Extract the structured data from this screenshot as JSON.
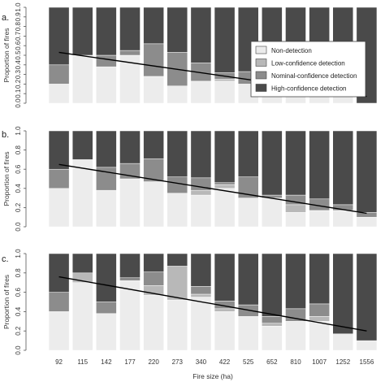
{
  "colors": {
    "non_detection": "#ececec",
    "low_confidence": "#b8b8b8",
    "nominal_confidence": "#8c8c8c",
    "high_confidence": "#4a4a4a",
    "trend_line": "#000000"
  },
  "chart_data": [
    {
      "type": "bar",
      "stacked": true,
      "panel_label": "a.",
      "ylabel": "Proportion of fires",
      "xlabel": "",
      "ylim": [
        0,
        1
      ],
      "yticks": [
        0.0,
        0.1,
        0.2,
        0.3,
        0.4,
        0.5,
        0.6,
        0.7,
        0.8,
        0.9,
        1.0
      ],
      "categories": [
        "92",
        "115",
        "142",
        "177",
        "220",
        "273",
        "340",
        "422",
        "525",
        "652",
        "810",
        "1007",
        "1252",
        "1556"
      ],
      "series": [
        {
          "name": "Non-detection",
          "values": [
            0.2,
            0.5,
            0.38,
            0.5,
            0.28,
            0.18,
            0.23,
            0.23,
            0.2,
            0.1,
            0.15,
            0.12,
            0.13,
            0.0
          ]
        },
        {
          "name": "Low-confidence detection",
          "values": [
            0.0,
            0.0,
            0.0,
            0.0,
            0.0,
            0.0,
            0.0,
            0.02,
            0.0,
            0.02,
            0.0,
            0.0,
            0.0,
            0.0
          ]
        },
        {
          "name": "Nominal-confidence detection",
          "values": [
            0.2,
            0.0,
            0.12,
            0.05,
            0.34,
            0.35,
            0.19,
            0.07,
            0.13,
            0.06,
            0.1,
            0.02,
            0.04,
            0.0
          ]
        },
        {
          "name": "High-confidence detection",
          "values": [
            0.6,
            0.5,
            0.5,
            0.45,
            0.38,
            0.47,
            0.58,
            0.68,
            0.67,
            0.82,
            0.75,
            0.86,
            0.83,
            1.0
          ]
        }
      ],
      "trend": {
        "start": 0.53,
        "end": 0.07
      },
      "legend": "top-right"
    },
    {
      "type": "bar",
      "stacked": true,
      "panel_label": "b.",
      "ylabel": "Proportion of fires",
      "xlabel": "",
      "ylim": [
        0,
        1
      ],
      "yticks": [
        0.0,
        0.2,
        0.4,
        0.6,
        0.8,
        1.0
      ],
      "categories": [
        "92",
        "115",
        "142",
        "177",
        "220",
        "273",
        "340",
        "422",
        "525",
        "652",
        "810",
        "1007",
        "1252",
        "1556"
      ],
      "series": [
        {
          "name": "Non-detection",
          "values": [
            0.4,
            0.7,
            0.38,
            0.5,
            0.47,
            0.35,
            0.33,
            0.4,
            0.3,
            0.3,
            0.15,
            0.17,
            0.17,
            0.1
          ]
        },
        {
          "name": "Low-confidence detection",
          "values": [
            0.0,
            0.0,
            0.0,
            0.0,
            0.0,
            0.0,
            0.05,
            0.04,
            0.0,
            0.0,
            0.08,
            0.0,
            0.0,
            0.0
          ]
        },
        {
          "name": "Nominal-confidence detection",
          "values": [
            0.2,
            0.0,
            0.24,
            0.16,
            0.24,
            0.17,
            0.13,
            0.02,
            0.22,
            0.03,
            0.1,
            0.12,
            0.06,
            0.05
          ]
        },
        {
          "name": "High-confidence detection",
          "values": [
            0.4,
            0.3,
            0.38,
            0.34,
            0.29,
            0.48,
            0.49,
            0.54,
            0.48,
            0.67,
            0.67,
            0.71,
            0.77,
            0.85
          ]
        }
      ],
      "trend": {
        "start": 0.65,
        "end": 0.14
      }
    },
    {
      "type": "bar",
      "stacked": true,
      "panel_label": "c.",
      "ylabel": "Proportion of fires",
      "xlabel": "Fire size (ha)",
      "ylim": [
        0,
        1
      ],
      "yticks": [
        0.0,
        0.2,
        0.4,
        0.6,
        0.8,
        1.0
      ],
      "categories": [
        "92",
        "115",
        "142",
        "177",
        "220",
        "273",
        "340",
        "422",
        "525",
        "652",
        "810",
        "1007",
        "1252",
        "1556"
      ],
      "series": [
        {
          "name": "Non-detection",
          "values": [
            0.4,
            0.7,
            0.38,
            0.72,
            0.57,
            0.52,
            0.55,
            0.4,
            0.35,
            0.25,
            0.3,
            0.3,
            0.17,
            0.1
          ]
        },
        {
          "name": "Low-confidence detection",
          "values": [
            0.0,
            0.1,
            0.0,
            0.0,
            0.1,
            0.35,
            0.03,
            0.03,
            0.0,
            0.03,
            0.0,
            0.05,
            0.0,
            0.0
          ]
        },
        {
          "name": "Nominal-confidence detection",
          "values": [
            0.2,
            0.0,
            0.12,
            0.03,
            0.14,
            0.0,
            0.08,
            0.08,
            0.12,
            0.07,
            0.13,
            0.13,
            0.0,
            0.0
          ]
        },
        {
          "name": "High-confidence detection",
          "values": [
            0.4,
            0.2,
            0.5,
            0.25,
            0.19,
            0.13,
            0.34,
            0.49,
            0.53,
            0.65,
            0.57,
            0.52,
            0.83,
            0.9
          ]
        }
      ],
      "trend": {
        "start": 0.76,
        "end": 0.2
      }
    }
  ]
}
